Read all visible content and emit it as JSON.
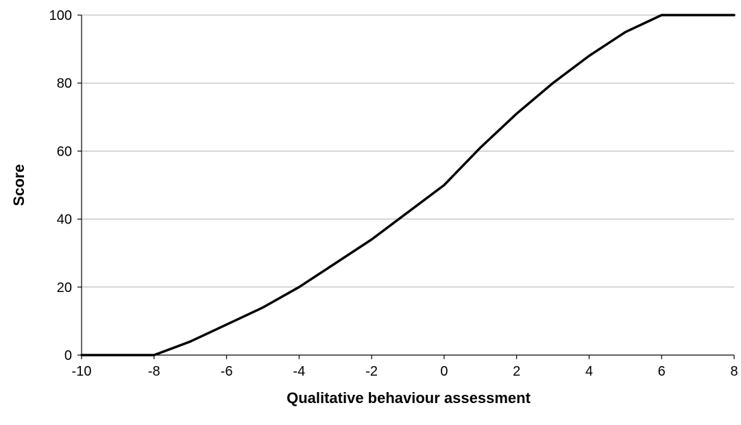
{
  "chart_data": {
    "type": "line",
    "title": "",
    "xlabel": "Qualitative behaviour assessment",
    "ylabel": "Score",
    "xlim": [
      -10,
      8
    ],
    "ylim": [
      0,
      100
    ],
    "x_ticks": [
      -10,
      -8,
      -6,
      -4,
      -2,
      0,
      2,
      4,
      6,
      8
    ],
    "y_ticks": [
      0,
      20,
      40,
      60,
      80,
      100
    ],
    "x_tick_labels": [
      "-10",
      "-8",
      "-6",
      "-4",
      "-2",
      "0",
      "2",
      "4",
      "6",
      "8"
    ],
    "y_tick_labels": [
      "0",
      "20",
      "40",
      "60",
      "80",
      "100"
    ],
    "grid": {
      "horizontal": true,
      "vertical": false
    },
    "legend": "none",
    "series": [
      {
        "color": "#000000",
        "x": [
          -10,
          -8,
          -7,
          -6,
          -5,
          -4,
          -3,
          -2,
          -1,
          0,
          1,
          2,
          3,
          4,
          5,
          6,
          8
        ],
        "values": [
          0,
          0,
          4,
          9,
          14,
          20,
          27,
          34,
          42,
          50,
          61,
          71,
          80,
          88,
          95,
          100,
          100
        ]
      }
    ]
  }
}
